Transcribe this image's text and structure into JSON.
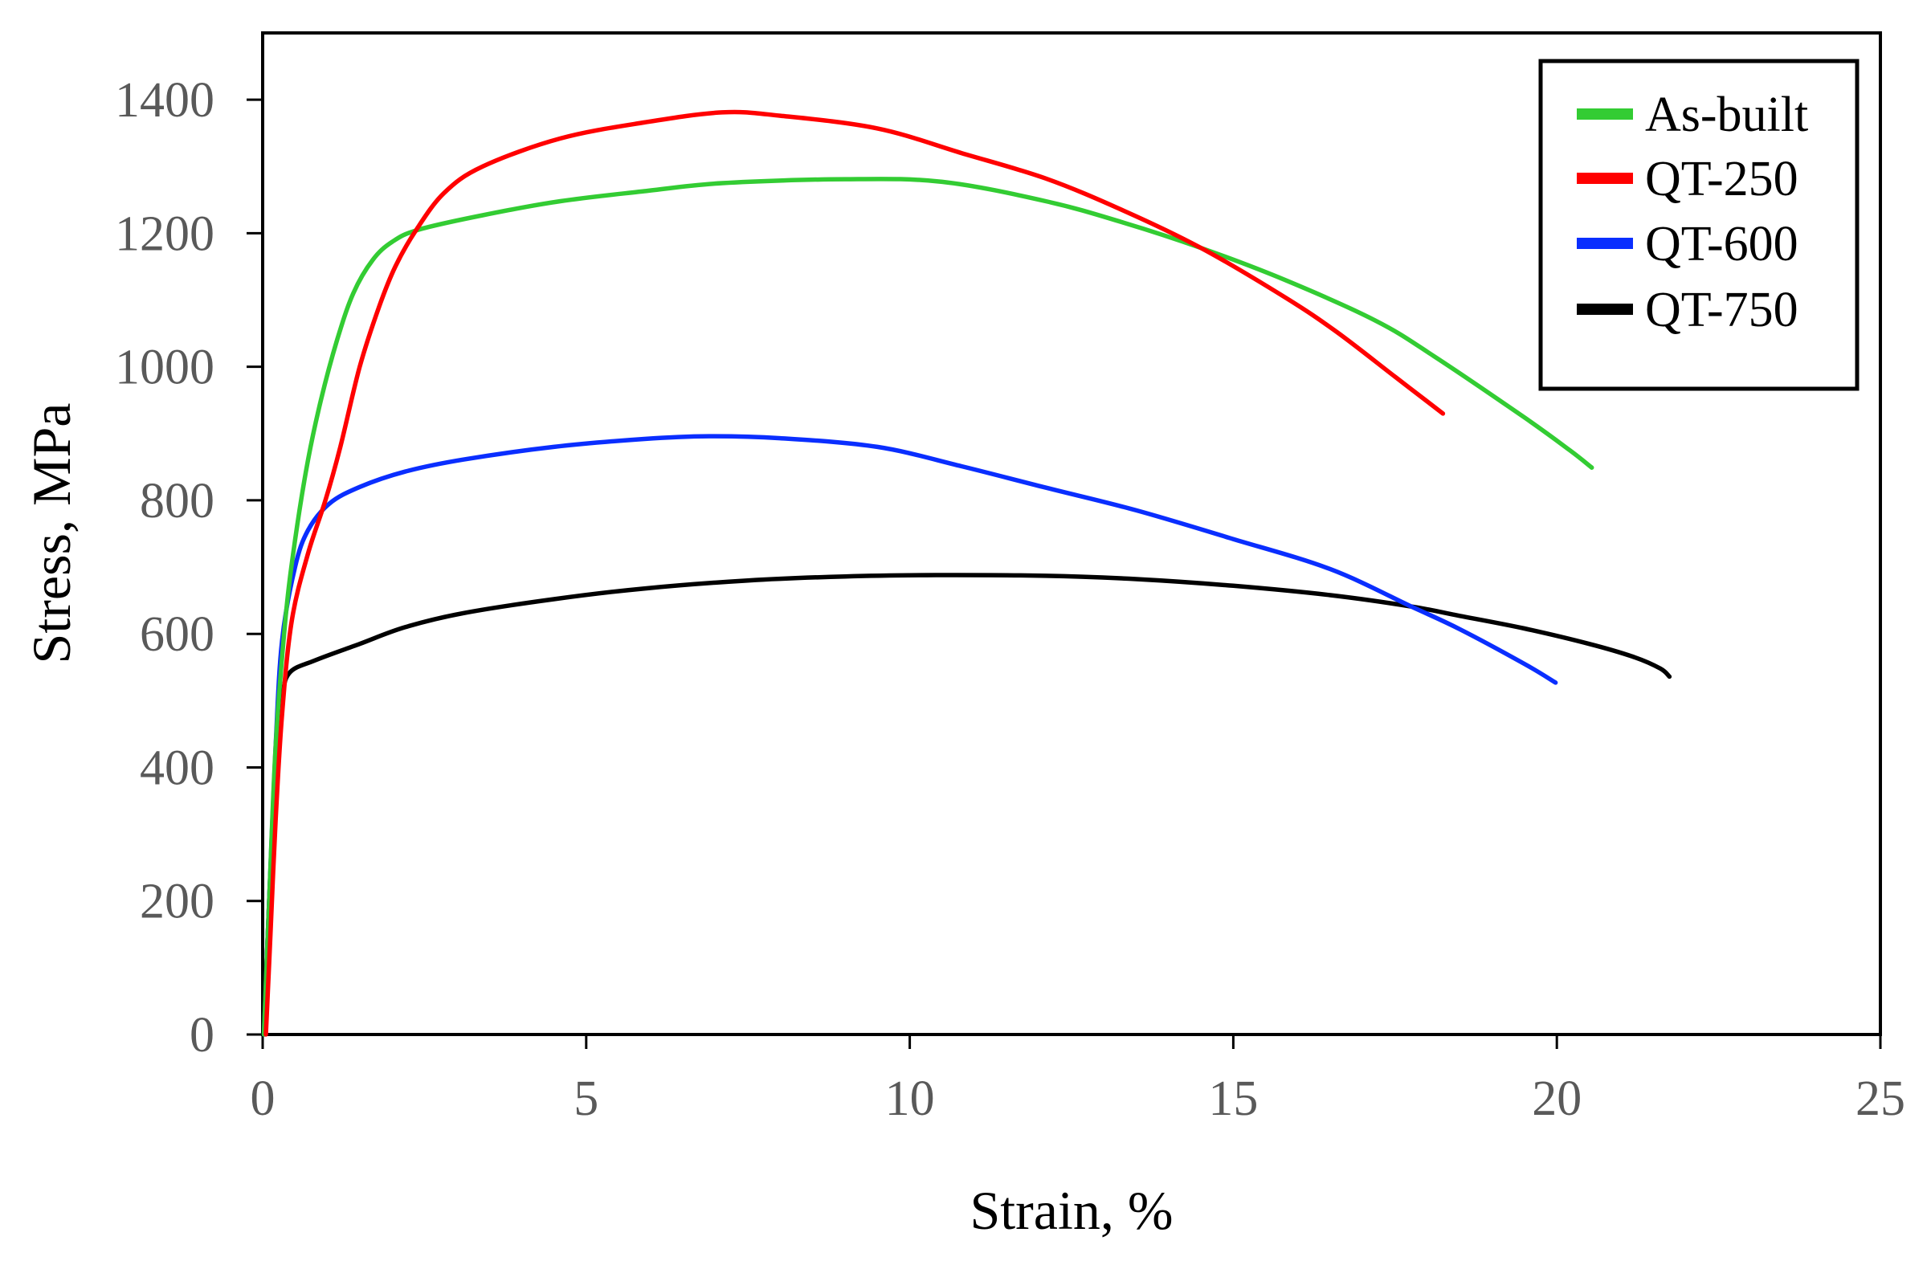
{
  "chart_data": {
    "type": "line",
    "title": "",
    "xlabel": "Strain, %",
    "ylabel": "Stress, MPa",
    "xlim": [
      0,
      25
    ],
    "ylim": [
      0,
      1500
    ],
    "x_ticks": [
      0,
      5,
      10,
      15,
      20,
      25
    ],
    "y_ticks": [
      0,
      200,
      400,
      600,
      800,
      1000,
      1200,
      1400
    ],
    "grid": false,
    "legend_position": "upper right (inside, boxed)",
    "series": [
      {
        "name": "As-built",
        "color": "#33CC33",
        "points": [
          [
            0.02,
            0
          ],
          [
            0.1,
            200
          ],
          [
            0.2,
            430
          ],
          [
            0.35,
            620
          ],
          [
            0.5,
            740
          ],
          [
            0.7,
            860
          ],
          [
            0.9,
            950
          ],
          [
            1.15,
            1040
          ],
          [
            1.4,
            1110
          ],
          [
            1.7,
            1160
          ],
          [
            2.0,
            1187
          ],
          [
            2.4,
            1205
          ],
          [
            3.4,
            1227
          ],
          [
            4.6,
            1248
          ],
          [
            5.9,
            1263
          ],
          [
            7.1,
            1275
          ],
          [
            9.0,
            1281
          ],
          [
            10.5,
            1277
          ],
          [
            12.1,
            1248
          ],
          [
            13.3,
            1216
          ],
          [
            14.5,
            1178
          ],
          [
            15.8,
            1130
          ],
          [
            17.2,
            1069
          ],
          [
            18.1,
            1016
          ],
          [
            19.5,
            924
          ],
          [
            20.2,
            875
          ],
          [
            20.54,
            849
          ]
        ]
      },
      {
        "name": "QT-250",
        "color": "#FF0000",
        "points": [
          [
            0.05,
            0
          ],
          [
            0.12,
            150
          ],
          [
            0.2,
            320
          ],
          [
            0.3,
            480
          ],
          [
            0.45,
            620
          ],
          [
            0.7,
            720
          ],
          [
            0.97,
            800
          ],
          [
            1.2,
            880
          ],
          [
            1.5,
            1000
          ],
          [
            1.8,
            1090
          ],
          [
            2.05,
            1150
          ],
          [
            2.36,
            1203
          ],
          [
            2.8,
            1260
          ],
          [
            3.4,
            1300
          ],
          [
            4.6,
            1342
          ],
          [
            5.9,
            1366
          ],
          [
            7.1,
            1381
          ],
          [
            8.0,
            1376
          ],
          [
            9.5,
            1357
          ],
          [
            10.8,
            1320
          ],
          [
            12.1,
            1282
          ],
          [
            13.3,
            1234
          ],
          [
            14.5,
            1178
          ],
          [
            15.8,
            1104
          ],
          [
            16.6,
            1052
          ],
          [
            17.5,
            985
          ],
          [
            18.24,
            930
          ]
        ]
      },
      {
        "name": "QT-600",
        "color": "#0A2EFF",
        "points": [
          [
            0.02,
            0
          ],
          [
            0.1,
            200
          ],
          [
            0.2,
            430
          ],
          [
            0.3,
            590
          ],
          [
            0.5,
            700
          ],
          [
            0.7,
            755
          ],
          [
            1.03,
            795
          ],
          [
            1.5,
            820
          ],
          [
            2.2,
            843
          ],
          [
            3.1,
            861
          ],
          [
            4.5,
            880
          ],
          [
            5.9,
            892
          ],
          [
            6.9,
            896
          ],
          [
            8.0,
            893
          ],
          [
            9.5,
            880
          ],
          [
            10.8,
            851
          ],
          [
            12.1,
            819
          ],
          [
            13.5,
            785
          ],
          [
            15.0,
            742
          ],
          [
            16.5,
            697
          ],
          [
            17.75,
            641
          ],
          [
            18.5,
            607
          ],
          [
            19.5,
            555
          ],
          [
            19.98,
            527
          ]
        ]
      },
      {
        "name": "QT-750",
        "color": "#000000",
        "points": [
          [
            0.02,
            0
          ],
          [
            0.1,
            200
          ],
          [
            0.2,
            400
          ],
          [
            0.3,
            500
          ],
          [
            0.41,
            541
          ],
          [
            0.8,
            560
          ],
          [
            1.5,
            585
          ],
          [
            2.2,
            610
          ],
          [
            3.1,
            631
          ],
          [
            4.5,
            652
          ],
          [
            5.9,
            668
          ],
          [
            7.5,
            680
          ],
          [
            9.0,
            686
          ],
          [
            10.4,
            688
          ],
          [
            12.1,
            687
          ],
          [
            13.5,
            682
          ],
          [
            15.0,
            672
          ],
          [
            16.5,
            658
          ],
          [
            17.75,
            641
          ],
          [
            18.5,
            627
          ],
          [
            19.5,
            608
          ],
          [
            20.5,
            585
          ],
          [
            21.2,
            565
          ],
          [
            21.6,
            548
          ],
          [
            21.74,
            536
          ]
        ]
      }
    ]
  },
  "axes": {
    "x_title": "Strain, %",
    "y_title": "Stress, MPa",
    "x_tick_labels": [
      "0",
      "5",
      "10",
      "15",
      "20",
      "25"
    ],
    "y_tick_labels": [
      "0",
      "200",
      "400",
      "600",
      "800",
      "1000",
      "1200",
      "1400"
    ]
  },
  "legend": {
    "items": [
      {
        "label": "As-built",
        "color": "#33CC33"
      },
      {
        "label": "QT-250",
        "color": "#FF0000"
      },
      {
        "label": "QT-600",
        "color": "#0A2EFF"
      },
      {
        "label": "QT-750",
        "color": "#000000"
      }
    ]
  }
}
